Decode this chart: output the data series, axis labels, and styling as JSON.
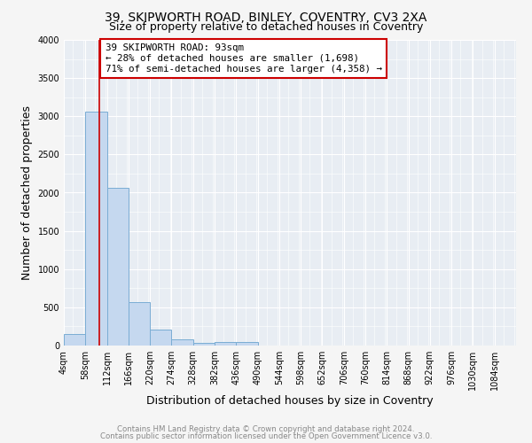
{
  "title1": "39, SKIPWORTH ROAD, BINLEY, COVENTRY, CV3 2XA",
  "title2": "Size of property relative to detached houses in Coventry",
  "xlabel": "Distribution of detached houses by size in Coventry",
  "ylabel": "Number of detached properties",
  "bin_edges": [
    4,
    58,
    112,
    166,
    220,
    274,
    328,
    382,
    436,
    490,
    544,
    598,
    652,
    706,
    760,
    814,
    868,
    922,
    976,
    1030,
    1084
  ],
  "counts": [
    150,
    3060,
    2060,
    570,
    205,
    80,
    40,
    50,
    45,
    0,
    0,
    0,
    0,
    0,
    0,
    0,
    0,
    0,
    0,
    0
  ],
  "bar_color": "#c5d8ef",
  "bar_edge_color": "#7aadd4",
  "property_size": 93,
  "property_line_color": "#cc0000",
  "annotation_line1": "39 SKIPWORTH ROAD: 93sqm",
  "annotation_line2": "← 28% of detached houses are smaller (1,698)",
  "annotation_line3": "71% of semi-detached houses are larger (4,358) →",
  "annotation_box_color": "#cc0000",
  "ylim": [
    0,
    4000
  ],
  "yticks": [
    0,
    500,
    1000,
    1500,
    2000,
    2500,
    3000,
    3500,
    4000
  ],
  "footer1": "Contains HM Land Registry data © Crown copyright and database right 2024.",
  "footer2": "Contains public sector information licensed under the Open Government Licence v3.0.",
  "bg_color": "#f5f5f5",
  "plot_bg_color": "#e8edf3",
  "grid_color": "#ffffff",
  "title1_fontsize": 10,
  "title2_fontsize": 9,
  "axis_label_fontsize": 9,
  "tick_fontsize": 7
}
